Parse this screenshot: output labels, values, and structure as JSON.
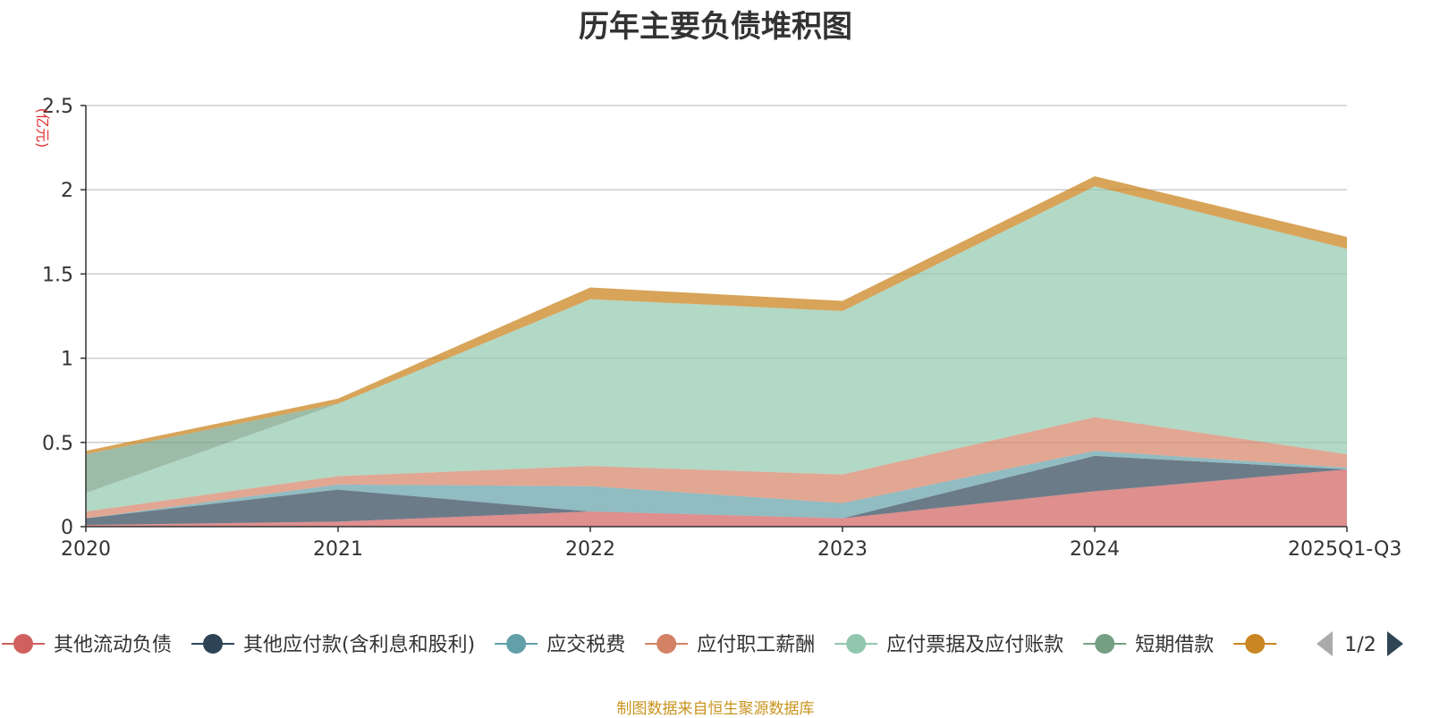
{
  "chart_data": {
    "type": "area",
    "title": "历年主要负债堆积图",
    "ylabel": "(亿元)",
    "ylim": [
      0,
      2.5
    ],
    "yticks": [
      "0",
      "0.5",
      "1",
      "1.5",
      "2",
      "2.5"
    ],
    "ytick_values": [
      0,
      0.5,
      1,
      1.5,
      2,
      2.5
    ],
    "categories": [
      "2020",
      "2021",
      "2022",
      "2023",
      "2024",
      "2025Q1-Q3"
    ],
    "series": [
      {
        "name": "其他流动负债",
        "color": "#d0605e",
        "values": [
          0.01,
          0.03,
          0.09,
          0.05,
          0.21,
          0.34
        ]
      },
      {
        "name": "其他应付款(含利息和股利)",
        "color": "#2e4356",
        "values": [
          0.04,
          0.19,
          0.0,
          0.0,
          0.21,
          0.0
        ]
      },
      {
        "name": "应交税费",
        "color": "#61a0a8",
        "values": [
          0.0,
          0.03,
          0.15,
          0.09,
          0.03,
          0.01
        ]
      },
      {
        "name": "应付职工薪酬",
        "color": "#d48265",
        "values": [
          0.04,
          0.05,
          0.12,
          0.17,
          0.2,
          0.08
        ]
      },
      {
        "name": "应付票据及应付账款",
        "color": "#91c7ae",
        "values": [
          0.11,
          0.43,
          0.99,
          0.97,
          1.37,
          1.22
        ]
      },
      {
        "name": "短期借款",
        "color": "#749f83",
        "values": [
          0.23,
          0.0,
          0.0,
          0.0,
          0.0,
          0.0
        ]
      },
      {
        "name": "",
        "color": "#ca8622",
        "values": [
          0.02,
          0.03,
          0.07,
          0.06,
          0.06,
          0.07
        ]
      }
    ],
    "legend_page": "1/2",
    "source": "制图数据来自恒生聚源数据库"
  },
  "colors": {
    "axis": "#333333",
    "grid": "#cccccc",
    "unit": "#e03030",
    "pager_inactive": "#aaaaaa",
    "pager_active": "#2f4554"
  }
}
